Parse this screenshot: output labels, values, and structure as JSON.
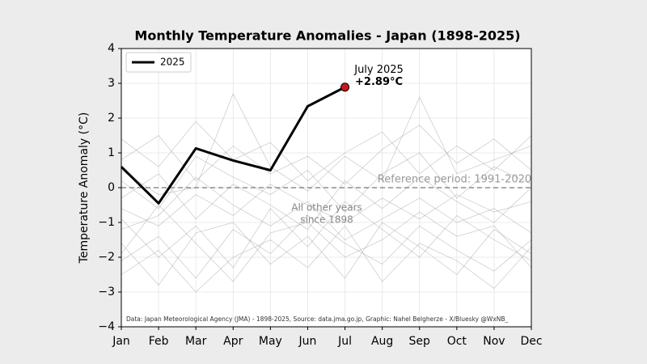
{
  "chart_data": {
    "type": "line",
    "title": "Monthly Temperature Anomalies - Japan (1898-2025)",
    "y_label": "Temperature Anomaly (°C)",
    "categories": [
      "Jan",
      "Feb",
      "Mar",
      "Apr",
      "May",
      "Jun",
      "Jul",
      "Aug",
      "Sep",
      "Oct",
      "Nov",
      "Dec"
    ],
    "series": [
      {
        "name": "2025",
        "color": "#000000",
        "marker_color": "#c8161d",
        "values": [
          0.6,
          -0.45,
          1.13,
          0.78,
          0.5,
          2.34,
          2.89,
          null,
          null,
          null,
          null,
          null
        ],
        "value_labels": [
          null,
          null,
          null,
          null,
          null,
          null,
          "+2.89°C",
          null,
          null,
          null,
          null,
          null
        ]
      }
    ],
    "background_color": "#9a9a9a",
    "background_series": [
      [
        -1.2,
        -0.8,
        0.3,
        -0.5,
        -1.1,
        -0.4,
        -1.5,
        -0.9,
        -0.3,
        -1.0,
        -0.6,
        -1.3
      ],
      [
        0.8,
        1.5,
        0.2,
        1.2,
        0.4,
        0.9,
        0.1,
        1.1,
        1.8,
        0.7,
        1.4,
        0.5
      ],
      [
        -2.1,
        -1.4,
        -2.6,
        -1.2,
        -1.9,
        -0.8,
        -1.6,
        -2.2,
        -1.1,
        -1.8,
        -2.4,
        -1.5
      ],
      [
        0.2,
        -0.6,
        0.9,
        0.3,
        -0.2,
        0.5,
        -0.7,
        0.4,
        1.0,
        -0.3,
        0.6,
        0.1
      ],
      [
        -0.9,
        -2.0,
        -1.1,
        -2.3,
        -0.6,
        -1.7,
        -0.4,
        -1.2,
        -2.0,
        -0.8,
        -1.5,
        -2.1
      ],
      [
        1.4,
        0.6,
        1.9,
        0.8,
        1.3,
        0.2,
        1.0,
        1.6,
        0.4,
        1.2,
        0.5,
        1.5
      ],
      [
        -1.6,
        -2.8,
        -1.3,
        -1.0,
        -2.2,
        -1.4,
        -2.6,
        -1.0,
        -1.7,
        -2.5,
        -1.2,
        -1.9
      ],
      [
        -0.3,
        0.4,
        -0.9,
        0.1,
        -0.5,
        -1.2,
        0.2,
        -0.6,
        0.3,
        -0.4,
        -1.0,
        0.0
      ],
      [
        -2.5,
        -1.8,
        -3.0,
        -2.0,
        -1.5,
        -2.3,
        -1.1,
        -2.7,
        -1.6,
        -2.1,
        -2.9,
        -1.7
      ],
      [
        0.5,
        -0.2,
        0.0,
        2.7,
        0.6,
        -0.1,
        0.9,
        0.2,
        2.6,
        0.4,
        0.8,
        1.2
      ],
      [
        -0.6,
        -1.1,
        -0.2,
        -0.8,
        0.1,
        -0.5,
        -1.0,
        -0.3,
        -0.9,
        -0.2,
        -0.7,
        -0.4
      ],
      [
        -1.9,
        -0.5,
        -1.6,
        -2.7,
        -1.3,
        -1.0,
        -2.0,
        -1.5,
        -0.7,
        -1.4,
        -1.1,
        -2.3
      ]
    ],
    "ylim": [
      -4,
      4
    ],
    "yticks": [
      {
        "value": -4,
        "label": "−4"
      },
      {
        "value": -3,
        "label": "−3"
      },
      {
        "value": -2,
        "label": "−2"
      },
      {
        "value": -1,
        "label": "−1"
      },
      0,
      1,
      2,
      3,
      4
    ],
    "grid": true,
    "legend": "upper left",
    "reference_value": 0,
    "annotations": {
      "point": "July 2025",
      "reference": "Reference period: 1991-2020",
      "others": [
        "All other years",
        "since 1898"
      ],
      "source": "Data: Japan Meteorological Agency (JMA) - 1898-2025, Source: data.jma.go.jp, Graphic: Nahel Belgherze - X/Bluesky @WxNB_"
    }
  }
}
